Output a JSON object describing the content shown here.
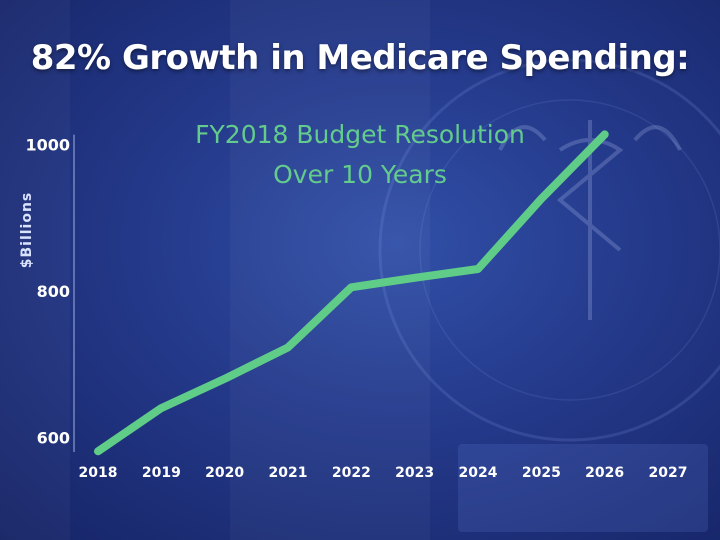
{
  "title": "82% Growth in Medicare Spending:",
  "subtitle_line1": "FY2018 Budget Resolution",
  "subtitle_line2": "Over 10 Years",
  "colors": {
    "line": "#5fcc88",
    "subtitle": "#63cc8c",
    "background": "#24398a"
  },
  "chart_data": {
    "type": "line",
    "title": "82% Growth in Medicare Spending:",
    "subtitle": "FY2018 Budget Resolution Over 10 Years",
    "xlabel": "",
    "ylabel": "$Billions",
    "x": [
      "2018",
      "2019",
      "2020",
      "2021",
      "2022",
      "2023",
      "2024",
      "2025",
      "2026",
      "2027"
    ],
    "series": [
      {
        "values": [
          581,
          640,
          680,
          723,
          805,
          818,
          830,
          926,
          1014,
          null
        ]
      }
    ],
    "y_ticks": [
      600,
      800,
      1000
    ],
    "ylim": [
      580,
      1020
    ],
    "grid": false,
    "legend": "none"
  }
}
